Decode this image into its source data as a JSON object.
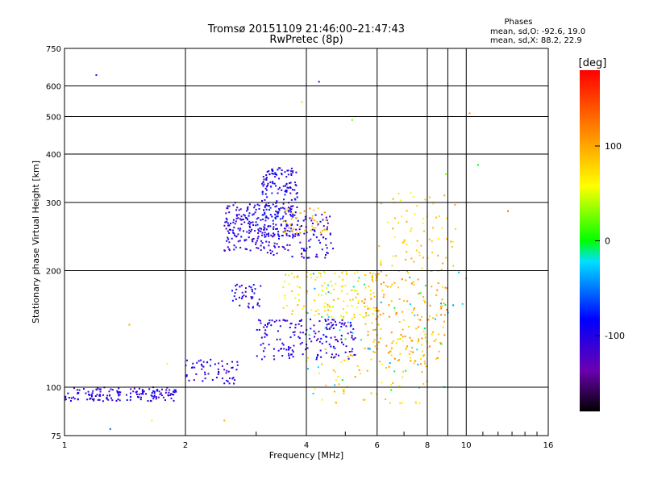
{
  "chart_data": {
    "type": "scatter",
    "title": "Tromsø 20151109 21:46:00–21:47:43",
    "subtitle": "RwPretec (8p)",
    "xlabel": "Frequency [MHz]",
    "ylabel": "Stationary phase Virtual Height [km]",
    "x_scale": "log",
    "y_scale": "log",
    "xlim": [
      1,
      16
    ],
    "ylim": [
      75,
      750
    ],
    "x_ticks": [
      1,
      2,
      4,
      6,
      8,
      10,
      16
    ],
    "y_ticks": [
      75,
      100,
      200,
      300,
      400,
      500,
      600,
      750
    ],
    "grid": true,
    "stats": {
      "heading": "Phases",
      "line_o": "mean, sd,O: -92.6, 19.0",
      "line_x": "mean, sd,X:  88.2, 22.9"
    },
    "colorbar": {
      "label": "[deg]",
      "ticks": [
        "100",
        "0",
        "-100"
      ],
      "tick_values": [
        100,
        0,
        -100
      ],
      "range": [
        -180,
        180
      ],
      "colormap": "rainbow (black-purple-blue-cyan-green-yellow-orange-red)"
    },
    "clusters": [
      {
        "x": [
          1.0,
          1.9
        ],
        "y": [
          92,
          100
        ],
        "phase": -105,
        "density": 150
      },
      {
        "x": [
          2.0,
          2.7
        ],
        "y": [
          102,
          118
        ],
        "phase": -105,
        "density": 60
      },
      {
        "x": [
          2.5,
          3.2
        ],
        "y": [
          225,
          300
        ],
        "phase": -100,
        "density": 160
      },
      {
        "x": [
          3.1,
          3.8
        ],
        "y": [
          245,
          370
        ],
        "phase": -95,
        "density": 200
      },
      {
        "x": [
          3.2,
          4.7
        ],
        "y": [
          215,
          280
        ],
        "phase": -105,
        "density": 110
      },
      {
        "x": [
          3.0,
          5.3
        ],
        "y": [
          118,
          150
        ],
        "phase": -105,
        "density": 180
      },
      {
        "x": [
          2.6,
          3.1
        ],
        "y": [
          160,
          185
        ],
        "phase": -100,
        "density": 40
      },
      {
        "x": [
          3.5,
          6.0
        ],
        "y": [
          150,
          200
        ],
        "phase": 70,
        "density": 130
      },
      {
        "x": [
          5.5,
          9.0
        ],
        "y": [
          115,
          200
        ],
        "phase": 95,
        "density": 170
      },
      {
        "x": [
          6.0,
          9.5
        ],
        "y": [
          200,
          320
        ],
        "phase": 80,
        "density": 70
      },
      {
        "x": [
          3.5,
          4.5
        ],
        "y": [
          250,
          290
        ],
        "phase": 95,
        "density": 40
      },
      {
        "x": [
          4.0,
          8.0
        ],
        "y": [
          90,
          135
        ],
        "phase": 80,
        "density": 70
      },
      {
        "x": [
          4.0,
          10.0
        ],
        "y": [
          95,
          200
        ],
        "phase": -20,
        "density": 50
      }
    ],
    "isolated_points": [
      {
        "x": 1.2,
        "y": 640,
        "phase": -110
      },
      {
        "x": 4.3,
        "y": 615,
        "phase": -100
      },
      {
        "x": 3.9,
        "y": 545,
        "phase": 40
      },
      {
        "x": 10.2,
        "y": 510,
        "phase": 110
      },
      {
        "x": 5.2,
        "y": 490,
        "phase": 20
      },
      {
        "x": 10.7,
        "y": 375,
        "phase": 0
      },
      {
        "x": 12.7,
        "y": 285,
        "phase": 130
      },
      {
        "x": 8.9,
        "y": 355,
        "phase": 30
      },
      {
        "x": 1.45,
        "y": 145,
        "phase": 100
      },
      {
        "x": 1.8,
        "y": 115,
        "phase": 60
      },
      {
        "x": 1.65,
        "y": 82,
        "phase": 50
      },
      {
        "x": 2.5,
        "y": 82,
        "phase": 100
      },
      {
        "x": 1.3,
        "y": 78,
        "phase": -60
      }
    ]
  }
}
